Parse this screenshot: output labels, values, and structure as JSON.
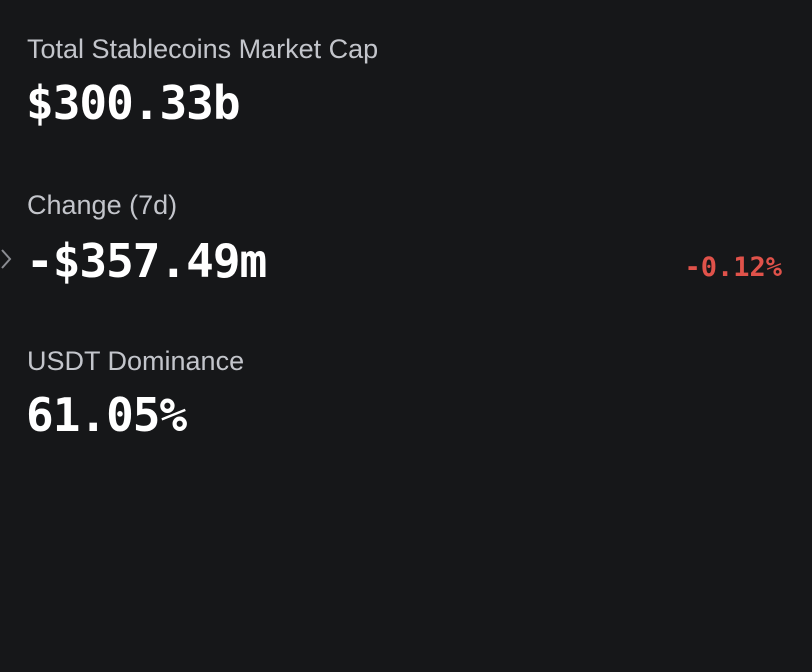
{
  "stats": [
    {
      "label": "Total Stablecoins Market Cap",
      "value": "$300.33b"
    },
    {
      "label": "Change (7d)",
      "value": "-$357.49m",
      "change": "-0.12%"
    },
    {
      "label": "USDT Dominance",
      "value": "61.05%"
    }
  ]
}
